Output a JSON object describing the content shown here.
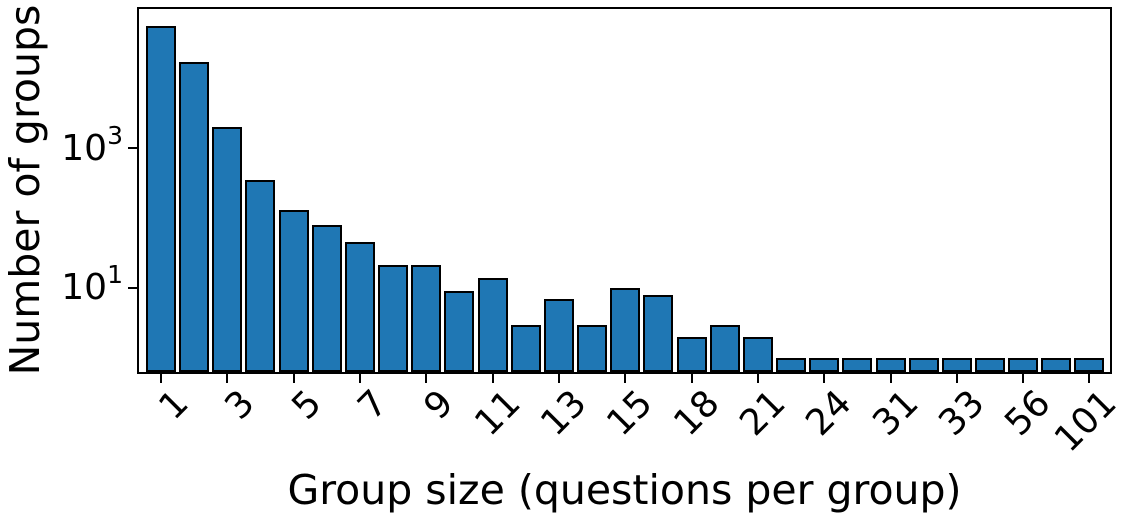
{
  "chart_data": {
    "type": "bar",
    "title": "",
    "xlabel": "Group size (questions per group)",
    "ylabel": "Number of groups",
    "yscale": "log",
    "grid": false,
    "legend": null,
    "bar_color": "#1f77b4",
    "bar_edge_color": "#000000",
    "n_bars": 29,
    "values": [
      55000,
      17000,
      2000,
      350,
      130,
      80,
      45,
      21,
      21,
      9,
      14,
      3,
      7,
      3,
      10,
      8,
      2,
      3,
      2,
      1,
      1,
      1,
      1,
      1,
      1,
      1,
      1,
      1,
      1
    ],
    "x_tick_labels": [
      "1",
      "3",
      "5",
      "7",
      "9",
      "11",
      "13",
      "15",
      "18",
      "21",
      "24",
      "31",
      "33",
      "56",
      "101"
    ],
    "x_tick_every": 2,
    "x_tick_rotation_deg": 45,
    "y_ticks": [
      {
        "value": 1000,
        "mantissa": "10",
        "exponent": "3"
      },
      {
        "value": 10,
        "mantissa": "10",
        "exponent": "1"
      }
    ],
    "ylim": [
      0.59,
      103500
    ]
  }
}
